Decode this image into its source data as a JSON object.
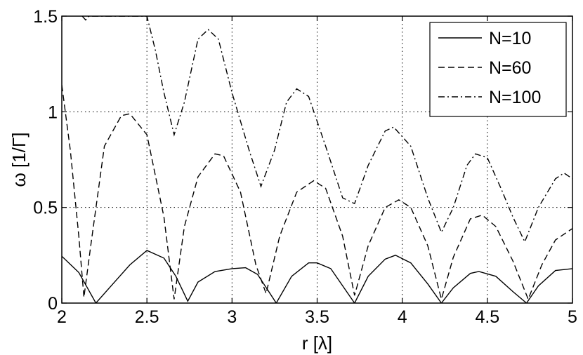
{
  "chart_data": {
    "type": "line",
    "title": "",
    "xlabel": "r  [λ]",
    "ylabel": "ω  [1/Γ]",
    "xlim": [
      2,
      5
    ],
    "ylim": [
      0,
      1.5
    ],
    "xticks": [
      "2",
      "2.5",
      "3",
      "3.5",
      "4",
      "4.5",
      "5"
    ],
    "yticks": [
      "0",
      "0.5",
      "1",
      "1.5"
    ],
    "grid": true,
    "legend_position": "top-right",
    "series": [
      {
        "name": "N=10",
        "style": "solid",
        "color": "#000000",
        "x": [
          2.0,
          2.1,
          2.2,
          2.3,
          2.4,
          2.5,
          2.6,
          2.67,
          2.74,
          2.8,
          2.9,
          3.0,
          3.08,
          3.15,
          3.26,
          3.35,
          3.45,
          3.5,
          3.58,
          3.72,
          3.8,
          3.9,
          3.96,
          4.05,
          4.15,
          4.23,
          4.3,
          4.4,
          4.45,
          4.55,
          4.65,
          4.73,
          4.8,
          4.9,
          5.0
        ],
        "y": [
          0.245,
          0.16,
          0.0,
          0.1,
          0.2,
          0.275,
          0.235,
          0.14,
          0.01,
          0.11,
          0.165,
          0.18,
          0.185,
          0.15,
          0.0,
          0.14,
          0.21,
          0.21,
          0.18,
          0.0,
          0.14,
          0.23,
          0.25,
          0.21,
          0.1,
          0.0,
          0.08,
          0.155,
          0.165,
          0.14,
          0.06,
          0.0,
          0.09,
          0.17,
          0.18
        ]
      },
      {
        "name": "N=60",
        "style": "dashed",
        "color": "#000000",
        "x": [
          2.0,
          2.05,
          2.1,
          2.13,
          2.17,
          2.25,
          2.35,
          2.4,
          2.5,
          2.6,
          2.66,
          2.72,
          2.8,
          2.9,
          2.95,
          3.05,
          3.14,
          3.2,
          3.28,
          3.38,
          3.48,
          3.55,
          3.65,
          3.72,
          3.8,
          3.9,
          3.98,
          4.05,
          4.15,
          4.23,
          4.3,
          4.4,
          4.47,
          4.55,
          4.65,
          4.74,
          4.82,
          4.9,
          5.0
        ],
        "y": [
          1.14,
          0.8,
          0.35,
          0.03,
          0.3,
          0.82,
          0.98,
          0.99,
          0.88,
          0.45,
          0.02,
          0.4,
          0.66,
          0.78,
          0.77,
          0.58,
          0.2,
          0.05,
          0.35,
          0.58,
          0.64,
          0.6,
          0.35,
          0.04,
          0.3,
          0.5,
          0.54,
          0.5,
          0.3,
          0.02,
          0.24,
          0.44,
          0.46,
          0.4,
          0.22,
          0.02,
          0.2,
          0.33,
          0.39
        ]
      },
      {
        "name": "N=100",
        "style": "dashdot",
        "color": "#000000",
        "x": [
          2.12,
          2.14,
          2.16,
          2.5,
          2.55,
          2.6,
          2.66,
          2.72,
          2.8,
          2.86,
          2.92,
          3.0,
          3.1,
          3.17,
          3.25,
          3.32,
          3.38,
          3.45,
          3.55,
          3.65,
          3.72,
          3.8,
          3.9,
          3.95,
          4.05,
          4.15,
          4.23,
          4.3,
          4.38,
          4.43,
          4.5,
          4.58,
          4.65,
          4.72,
          4.8,
          4.9,
          4.95,
          5.0
        ],
        "y": [
          1.5,
          1.48,
          1.5,
          1.5,
          1.32,
          1.1,
          0.88,
          1.05,
          1.38,
          1.43,
          1.38,
          1.1,
          0.8,
          0.61,
          0.8,
          1.05,
          1.12,
          1.08,
          0.82,
          0.55,
          0.52,
          0.72,
          0.9,
          0.92,
          0.82,
          0.55,
          0.37,
          0.5,
          0.72,
          0.78,
          0.76,
          0.6,
          0.45,
          0.32,
          0.5,
          0.65,
          0.68,
          0.65
        ]
      }
    ]
  }
}
